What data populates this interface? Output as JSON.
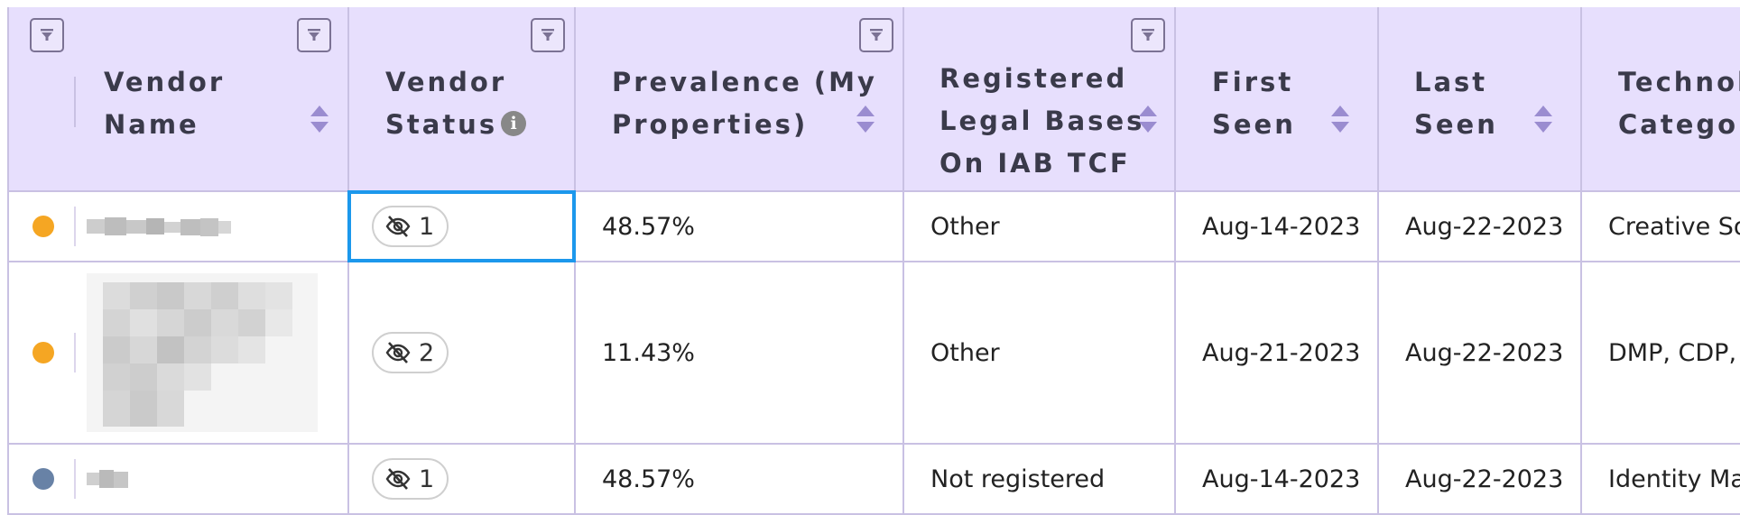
{
  "colors": {
    "header_bg": "#e7dffd",
    "border": "#c9c1e3",
    "sort_arrow": "#9a8cd0",
    "selection": "#1c98ec",
    "dot_orange": "#f5a623",
    "dot_slate": "#6882a6"
  },
  "columns": [
    {
      "key": "indicator",
      "label_lines": []
    },
    {
      "key": "vendor_name",
      "label_lines": [
        "Vendor",
        "Name"
      ]
    },
    {
      "key": "vendor_status",
      "label_lines": [
        "Vendor",
        "Status"
      ],
      "info_icon": "i"
    },
    {
      "key": "prevalence",
      "label_lines": [
        "Prevalence (My",
        "Properties)"
      ]
    },
    {
      "key": "legal_bases",
      "label_lines": [
        "Registered",
        "Legal Bases",
        "On IAB TCF"
      ]
    },
    {
      "key": "first_seen",
      "label_lines": [
        "First",
        "Seen"
      ]
    },
    {
      "key": "last_seen",
      "label_lines": [
        "Last",
        "Seen"
      ]
    },
    {
      "key": "technology_categories",
      "label_lines": [
        "Technology",
        "Categories"
      ]
    }
  ],
  "rows": [
    {
      "dot_color": "#f5a623",
      "vendor_name_redacted": true,
      "status_icon": "eye-slash-icon",
      "status_count": "1",
      "prevalence": "48.57%",
      "legal_bases": "Other",
      "first_seen": "Aug-14-2023",
      "last_seen": "Aug-22-2023",
      "technology_categories": "Creative Solutions"
    },
    {
      "dot_color": "#f5a623",
      "vendor_name_redacted": true,
      "status_icon": "eye-slash-icon",
      "status_count": "2",
      "prevalence": "11.43%",
      "legal_bases": "Other",
      "first_seen": "Aug-21-2023",
      "last_seen": "Aug-22-2023",
      "technology_categories": "DMP, CDP, Analytics"
    },
    {
      "dot_color": "#6882a6",
      "vendor_name_redacted": true,
      "status_icon": "eye-slash-icon",
      "status_count": "1",
      "prevalence": "48.57%",
      "legal_bases": "Not registered",
      "first_seen": "Aug-14-2023",
      "last_seen": "Aug-22-2023",
      "technology_categories": "Identity Management"
    }
  ]
}
